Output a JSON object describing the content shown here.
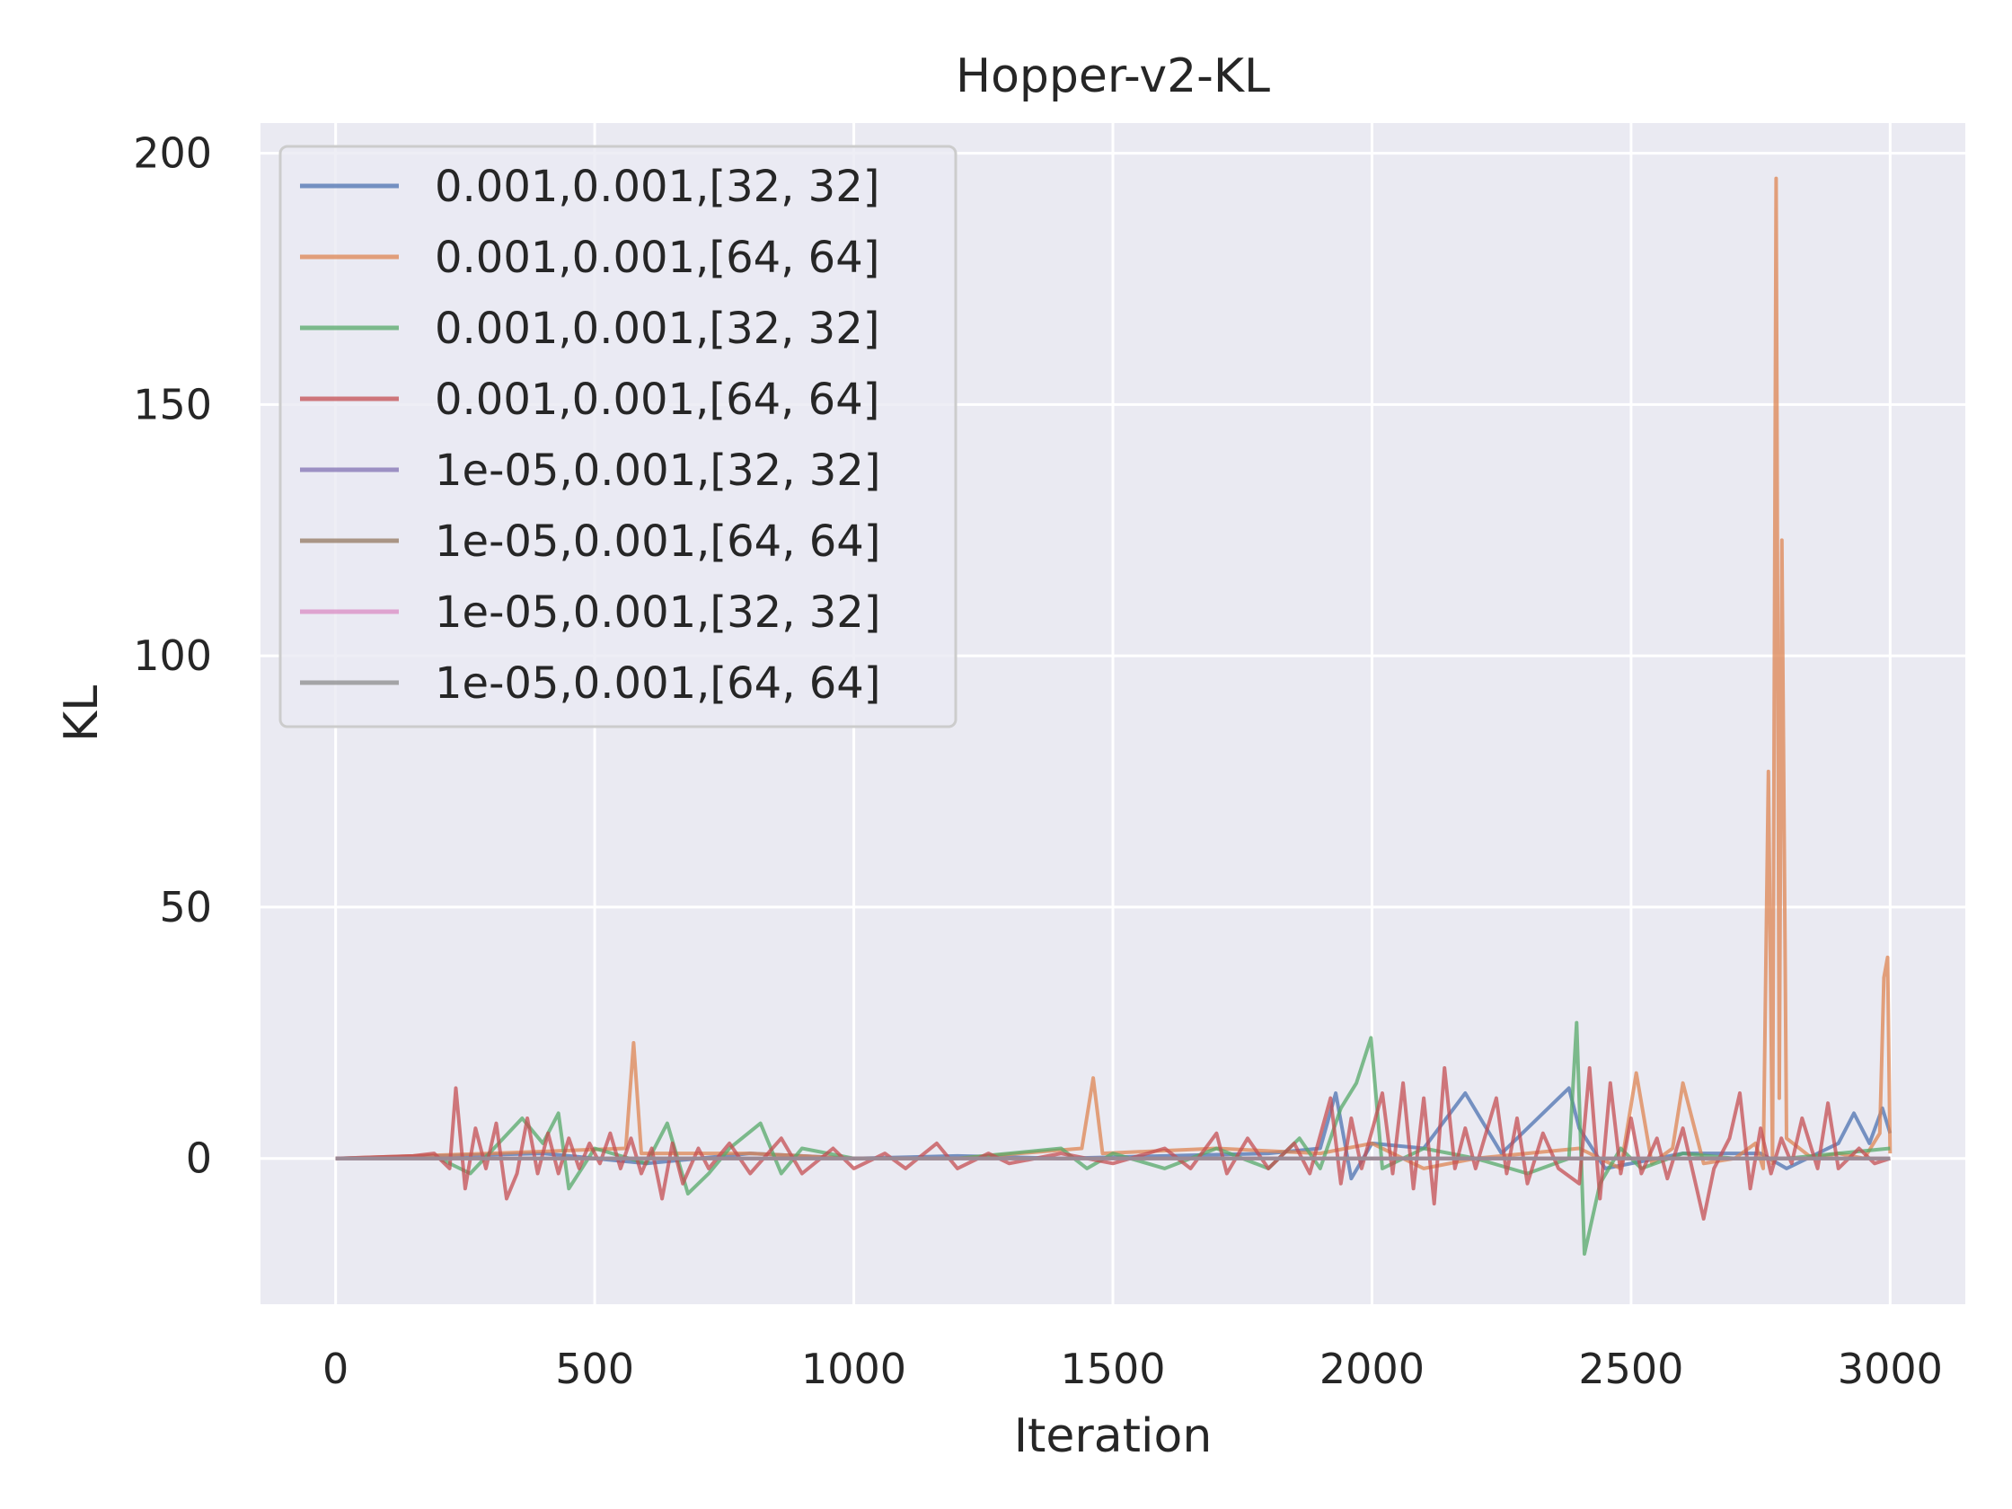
{
  "chart_data": {
    "type": "line",
    "title": "Hopper-v2-KL",
    "xlabel": "Iteration",
    "ylabel": "KL",
    "xlim": [
      -145,
      3145
    ],
    "ylim": [
      -29,
      206
    ],
    "xticks": [
      0,
      500,
      1000,
      1500,
      2000,
      2500,
      3000
    ],
    "yticks": [
      0,
      50,
      100,
      150,
      200
    ],
    "grid": true,
    "legend_position": "top-left",
    "series": [
      {
        "name": "0.001,0.001,[32, 32]",
        "color": "#4c72b0",
        "points": [
          [
            0,
            0
          ],
          [
            200,
            0.5
          ],
          [
            400,
            1
          ],
          [
            600,
            -1
          ],
          [
            800,
            1
          ],
          [
            1000,
            0
          ],
          [
            1200,
            0.5
          ],
          [
            1400,
            0
          ],
          [
            1600,
            0.5
          ],
          [
            1800,
            1
          ],
          [
            1900,
            2
          ],
          [
            1930,
            13
          ],
          [
            1960,
            -4
          ],
          [
            2000,
            3
          ],
          [
            2100,
            2
          ],
          [
            2180,
            13
          ],
          [
            2250,
            1
          ],
          [
            2380,
            14
          ],
          [
            2400,
            6
          ],
          [
            2450,
            -2
          ],
          [
            2600,
            1
          ],
          [
            2750,
            1
          ],
          [
            2800,
            -2
          ],
          [
            2900,
            3
          ],
          [
            2930,
            9
          ],
          [
            2960,
            3
          ],
          [
            2985,
            10
          ],
          [
            3000,
            5
          ]
        ]
      },
      {
        "name": "0.001,0.001,[64, 64]",
        "color": "#dd8452",
        "points": [
          [
            0,
            0
          ],
          [
            300,
            1
          ],
          [
            560,
            2
          ],
          [
            575,
            23
          ],
          [
            590,
            1
          ],
          [
            800,
            1
          ],
          [
            1000,
            0
          ],
          [
            1200,
            0
          ],
          [
            1440,
            2
          ],
          [
            1462,
            16
          ],
          [
            1480,
            1
          ],
          [
            1700,
            2
          ],
          [
            1900,
            1
          ],
          [
            2000,
            3
          ],
          [
            2100,
            -2
          ],
          [
            2200,
            0
          ],
          [
            2400,
            2
          ],
          [
            2480,
            -2
          ],
          [
            2510,
            17
          ],
          [
            2540,
            -1
          ],
          [
            2580,
            2
          ],
          [
            2600,
            15
          ],
          [
            2640,
            -1
          ],
          [
            2700,
            0
          ],
          [
            2740,
            3
          ],
          [
            2755,
            -2
          ],
          [
            2765,
            77
          ],
          [
            2773,
            -1
          ],
          [
            2780,
            195
          ],
          [
            2786,
            12
          ],
          [
            2791,
            123
          ],
          [
            2800,
            4
          ],
          [
            2850,
            0
          ],
          [
            2900,
            1
          ],
          [
            2950,
            0
          ],
          [
            2980,
            5
          ],
          [
            2988,
            36
          ],
          [
            2995,
            40
          ],
          [
            3000,
            1
          ]
        ]
      },
      {
        "name": "0.001,0.001,[32, 32]",
        "color": "#55a868",
        "points": [
          [
            0,
            0
          ],
          [
            200,
            0
          ],
          [
            260,
            -3
          ],
          [
            360,
            8
          ],
          [
            400,
            3
          ],
          [
            430,
            9
          ],
          [
            450,
            -6
          ],
          [
            500,
            2
          ],
          [
            600,
            -1
          ],
          [
            640,
            7
          ],
          [
            680,
            -7
          ],
          [
            720,
            -3
          ],
          [
            760,
            2
          ],
          [
            820,
            7
          ],
          [
            860,
            -3
          ],
          [
            900,
            2
          ],
          [
            1000,
            0
          ],
          [
            1200,
            0
          ],
          [
            1400,
            2
          ],
          [
            1450,
            -2
          ],
          [
            1500,
            1
          ],
          [
            1600,
            -2
          ],
          [
            1700,
            2
          ],
          [
            1800,
            -2
          ],
          [
            1860,
            4
          ],
          [
            1900,
            -2
          ],
          [
            1940,
            10
          ],
          [
            1970,
            15
          ],
          [
            1998,
            24
          ],
          [
            2020,
            -2
          ],
          [
            2100,
            2
          ],
          [
            2200,
            0
          ],
          [
            2300,
            -3
          ],
          [
            2380,
            0
          ],
          [
            2395,
            27
          ],
          [
            2410,
            -19
          ],
          [
            2440,
            -5
          ],
          [
            2480,
            2
          ],
          [
            2520,
            -2
          ],
          [
            2600,
            1
          ],
          [
            2700,
            0
          ],
          [
            2800,
            0
          ],
          [
            2900,
            1
          ],
          [
            3000,
            2
          ]
        ]
      },
      {
        "name": "0.001,0.001,[64, 64]",
        "color": "#c44e52",
        "points": [
          [
            0,
            0
          ],
          [
            150,
            0.5
          ],
          [
            190,
            1
          ],
          [
            220,
            -2
          ],
          [
            232,
            14
          ],
          [
            250,
            -6
          ],
          [
            270,
            6
          ],
          [
            290,
            -2
          ],
          [
            310,
            7
          ],
          [
            330,
            -8
          ],
          [
            350,
            -3
          ],
          [
            370,
            8
          ],
          [
            390,
            -3
          ],
          [
            410,
            5
          ],
          [
            430,
            -3
          ],
          [
            450,
            4
          ],
          [
            470,
            -2
          ],
          [
            490,
            3
          ],
          [
            510,
            -1
          ],
          [
            530,
            5
          ],
          [
            550,
            -2
          ],
          [
            570,
            4
          ],
          [
            590,
            -3
          ],
          [
            610,
            2
          ],
          [
            630,
            -8
          ],
          [
            650,
            3
          ],
          [
            670,
            -5
          ],
          [
            700,
            2
          ],
          [
            720,
            -2
          ],
          [
            760,
            3
          ],
          [
            800,
            -3
          ],
          [
            860,
            4
          ],
          [
            900,
            -3
          ],
          [
            960,
            2
          ],
          [
            1000,
            -2
          ],
          [
            1060,
            1
          ],
          [
            1100,
            -2
          ],
          [
            1160,
            3
          ],
          [
            1200,
            -2
          ],
          [
            1260,
            1
          ],
          [
            1300,
            -1
          ],
          [
            1400,
            1
          ],
          [
            1500,
            -1
          ],
          [
            1600,
            2
          ],
          [
            1650,
            -2
          ],
          [
            1700,
            5
          ],
          [
            1720,
            -3
          ],
          [
            1760,
            4
          ],
          [
            1800,
            -2
          ],
          [
            1850,
            3
          ],
          [
            1880,
            -3
          ],
          [
            1920,
            12
          ],
          [
            1940,
            -5
          ],
          [
            1960,
            8
          ],
          [
            1980,
            -2
          ],
          [
            2020,
            13
          ],
          [
            2040,
            -3
          ],
          [
            2060,
            15
          ],
          [
            2080,
            -6
          ],
          [
            2100,
            12
          ],
          [
            2120,
            -9
          ],
          [
            2140,
            18
          ],
          [
            2160,
            -2
          ],
          [
            2180,
            6
          ],
          [
            2200,
            -2
          ],
          [
            2240,
            12
          ],
          [
            2260,
            -3
          ],
          [
            2280,
            8
          ],
          [
            2300,
            -5
          ],
          [
            2330,
            5
          ],
          [
            2360,
            -2
          ],
          [
            2400,
            -5
          ],
          [
            2420,
            18
          ],
          [
            2440,
            -8
          ],
          [
            2460,
            15
          ],
          [
            2480,
            -3
          ],
          [
            2500,
            8
          ],
          [
            2520,
            -3
          ],
          [
            2550,
            4
          ],
          [
            2570,
            -4
          ],
          [
            2600,
            6
          ],
          [
            2640,
            -12
          ],
          [
            2660,
            -2
          ],
          [
            2690,
            4
          ],
          [
            2710,
            13
          ],
          [
            2730,
            -6
          ],
          [
            2750,
            6
          ],
          [
            2770,
            -3
          ],
          [
            2790,
            4
          ],
          [
            2810,
            -1
          ],
          [
            2830,
            8
          ],
          [
            2860,
            -2
          ],
          [
            2880,
            11
          ],
          [
            2900,
            -2
          ],
          [
            2940,
            2
          ],
          [
            2970,
            -1
          ],
          [
            3000,
            0
          ]
        ]
      },
      {
        "name": "1e-05,0.001,[32, 32]",
        "color": "#8172b3",
        "points": [
          [
            0,
            0
          ],
          [
            500,
            0
          ],
          [
            1000,
            0
          ],
          [
            1500,
            0
          ],
          [
            2000,
            0
          ],
          [
            2500,
            0
          ],
          [
            3000,
            0
          ]
        ]
      },
      {
        "name": "1e-05,0.001,[64, 64]",
        "color": "#937860",
        "points": [
          [
            0,
            0
          ],
          [
            500,
            0
          ],
          [
            1000,
            0
          ],
          [
            1500,
            0
          ],
          [
            2000,
            0
          ],
          [
            2500,
            0
          ],
          [
            3000,
            0
          ]
        ]
      },
      {
        "name": "1e-05,0.001,[32, 32]",
        "color": "#da8bc3",
        "points": [
          [
            0,
            0
          ],
          [
            500,
            0
          ],
          [
            1000,
            0
          ],
          [
            1500,
            0
          ],
          [
            2000,
            0
          ],
          [
            2500,
            0
          ],
          [
            3000,
            0
          ]
        ]
      },
      {
        "name": "1e-05,0.001,[64, 64]",
        "color": "#8c8c8c",
        "points": [
          [
            0,
            0
          ],
          [
            500,
            0
          ],
          [
            1000,
            0
          ],
          [
            1500,
            0
          ],
          [
            2000,
            0
          ],
          [
            2500,
            0
          ],
          [
            3000,
            0
          ]
        ]
      }
    ]
  }
}
